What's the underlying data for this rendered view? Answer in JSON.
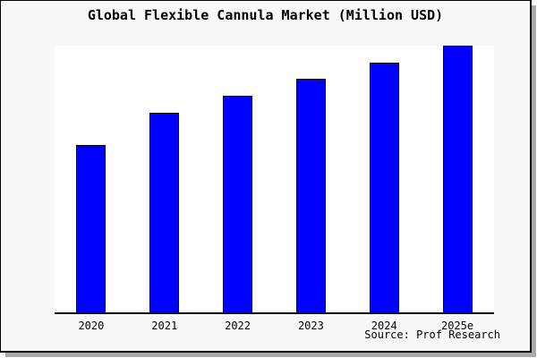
{
  "chart_data": {
    "type": "bar",
    "title": "Global Flexible Cannula Market (Million USD)",
    "categories": [
      "2020",
      "2021",
      "2022",
      "2023",
      "2024",
      "2025e"
    ],
    "values": [
      62.7,
      75.0,
      81.3,
      87.7,
      93.7,
      100.0
    ],
    "value_unit": "percent of tallest bar (2025e = 100); y-axis has no ticks, labels or gridlines",
    "xlabel": "",
    "ylabel": "",
    "ylim": [
      0,
      100
    ],
    "grid": false,
    "legend": "none",
    "colors": {
      "bar_fill": "#0000ff",
      "bar_border": "#000000",
      "plot_background": "#ffffff",
      "canvas_background": "#f8f8f8",
      "frame_border": "#000000",
      "shadow": "#a9a9a9",
      "text": "#000000"
    }
  },
  "footer": {
    "source": "Source: Prof Research"
  }
}
